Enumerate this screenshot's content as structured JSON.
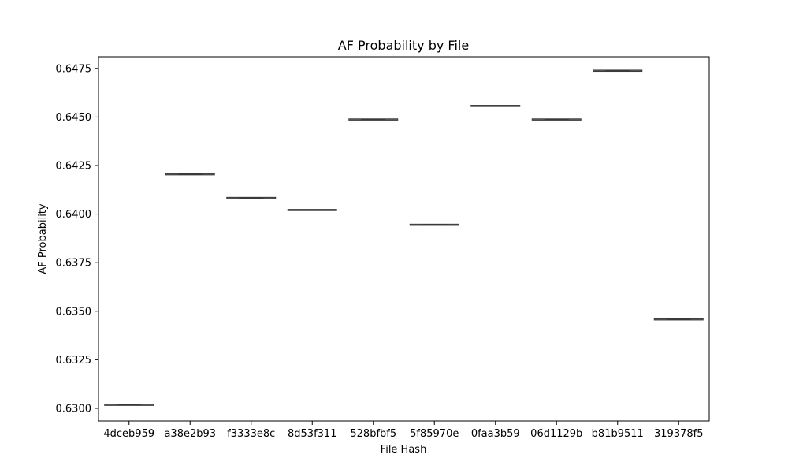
{
  "chart_data": {
    "type": "box",
    "title": "AF Probability by File",
    "xlabel": "File Hash",
    "ylabel": "AF Probability",
    "categories": [
      "4dceb959",
      "a38e2b93",
      "f3333e8c",
      "8d53f311",
      "528bfbf5",
      "5f85970e",
      "0faa3b59",
      "06d1129b",
      "b81b9511",
      "319378f5"
    ],
    "values": [
      0.63018,
      0.64205,
      0.64083,
      0.64021,
      0.64487,
      0.63945,
      0.64557,
      0.64487,
      0.64738,
      0.63458
    ],
    "ylim": [
      0.62935,
      0.6481
    ],
    "yticks": [
      0.63,
      0.6325,
      0.635,
      0.6375,
      0.64,
      0.6425,
      0.645,
      0.6475
    ],
    "ytick_labels": [
      "0.6300",
      "0.6325",
      "0.6350",
      "0.6375",
      "0.6400",
      "0.6425",
      "0.6450",
      "0.6475"
    ],
    "grid": false,
    "legend": "none",
    "box_color": "#3a3a3a"
  }
}
